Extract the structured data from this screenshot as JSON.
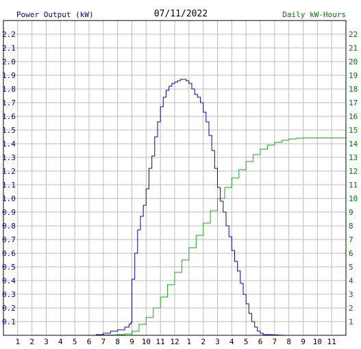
{
  "chart_data": {
    "type": "line",
    "title": "07/11/2022",
    "ylabel_left": "Power Output (kW)",
    "ylabel_right": "Daily kW-Hours",
    "x_tick_labels": [
      "1",
      "2",
      "3",
      "4",
      "5",
      "6",
      "7",
      "8",
      "9",
      "10",
      "11",
      "12",
      "1",
      "2",
      "3",
      "4",
      "5",
      "6",
      "7",
      "8",
      "9",
      "10",
      "11"
    ],
    "x_range_hours": [
      0,
      24
    ],
    "ylim_left": [
      0,
      2.3
    ],
    "ylim_right": [
      0,
      23
    ],
    "y_ticks_left": [
      "0.1",
      "0.2",
      "0.3",
      "0.4",
      "0.5",
      "0.6",
      "0.7",
      "0.8",
      "0.9",
      "1.0",
      "1.1",
      "1.2",
      "1.3",
      "1.4",
      "1.5",
      "1.6",
      "1.7",
      "1.8",
      "1.9",
      "2.0",
      "2.1",
      "2.2"
    ],
    "y_ticks_right": [
      "1",
      "2",
      "3",
      "4",
      "5",
      "6",
      "7",
      "8",
      "9",
      "10",
      "11",
      "12",
      "13",
      "14",
      "15",
      "16",
      "17",
      "18",
      "19",
      "20",
      "21",
      "22"
    ],
    "grid": true,
    "colors": {
      "left_axis": "#000099",
      "right_axis": "#007700",
      "power_line": "#0000bb",
      "energy_line": "#11aa11",
      "grid": "#bbbbbb"
    },
    "series": [
      {
        "name": "Power Output (kW)",
        "axis": "left",
        "x": [
          0,
          6.0,
          6.5,
          7.0,
          7.5,
          8.0,
          8.5,
          8.8,
          8.9,
          9.0,
          9.2,
          9.4,
          9.6,
          9.8,
          10.0,
          10.2,
          10.4,
          10.6,
          10.8,
          11.0,
          11.2,
          11.4,
          11.6,
          11.8,
          12.0,
          12.2,
          12.4,
          12.6,
          12.8,
          13.0,
          13.2,
          13.4,
          13.6,
          13.8,
          14.0,
          14.2,
          14.4,
          14.6,
          14.8,
          15.0,
          15.2,
          15.4,
          15.6,
          15.8,
          16.0,
          16.2,
          16.4,
          16.6,
          16.8,
          17.0,
          17.2,
          17.4,
          17.6,
          17.8,
          18.0,
          18.2,
          18.4,
          18.6,
          18.8,
          19.0,
          19.2,
          19.4,
          19.6,
          19.8,
          20.0,
          20.2,
          20.4,
          20.6,
          20.8,
          21.0,
          21.2,
          21.4,
          21.6,
          21.8,
          22.0
        ],
        "values": [
          0,
          0,
          0.005,
          0.015,
          0.03,
          0.04,
          0.06,
          0.08,
          0.09,
          0.41,
          0.6,
          0.77,
          0.87,
          0.95,
          1.07,
          1.22,
          1.31,
          1.45,
          1.56,
          1.67,
          1.74,
          1.79,
          1.82,
          1.84,
          1.85,
          1.86,
          1.87,
          1.87,
          1.86,
          1.84,
          1.8,
          1.76,
          1.74,
          1.7,
          1.63,
          1.56,
          1.46,
          1.35,
          1.22,
          1.08,
          0.98,
          0.9,
          0.8,
          0.72,
          0.62,
          0.54,
          0.47,
          0.38,
          0.3,
          0.23,
          0.16,
          0.1,
          0.06,
          0.03,
          0.015,
          0.005,
          0.005,
          0.005,
          0.004,
          0.003,
          0.002,
          0.001,
          0,
          0,
          0,
          0,
          0,
          0,
          0,
          0,
          0,
          0,
          0,
          0,
          0
        ]
      },
      {
        "name": "Daily kW-Hours",
        "axis": "right",
        "x": [
          0,
          6.0,
          7.0,
          8.0,
          8.5,
          9.0,
          9.5,
          10.0,
          10.5,
          11.0,
          11.5,
          12.0,
          12.5,
          13.0,
          13.5,
          14.0,
          14.5,
          15.0,
          15.5,
          16.0,
          16.5,
          17.0,
          17.5,
          18.0,
          18.5,
          19.0,
          19.5,
          20.0,
          20.5,
          21.0,
          21.5,
          22.0,
          23.0,
          24.0
        ],
        "values": [
          0,
          0,
          0.02,
          0.05,
          0.1,
          0.3,
          0.8,
          1.3,
          2.0,
          2.8,
          3.7,
          4.6,
          5.5,
          6.4,
          7.3,
          8.2,
          9.1,
          10.0,
          10.8,
          11.5,
          12.1,
          12.7,
          13.2,
          13.6,
          13.9,
          14.1,
          14.25,
          14.35,
          14.4,
          14.42,
          14.42,
          14.42,
          14.42,
          14.42
        ]
      }
    ]
  }
}
